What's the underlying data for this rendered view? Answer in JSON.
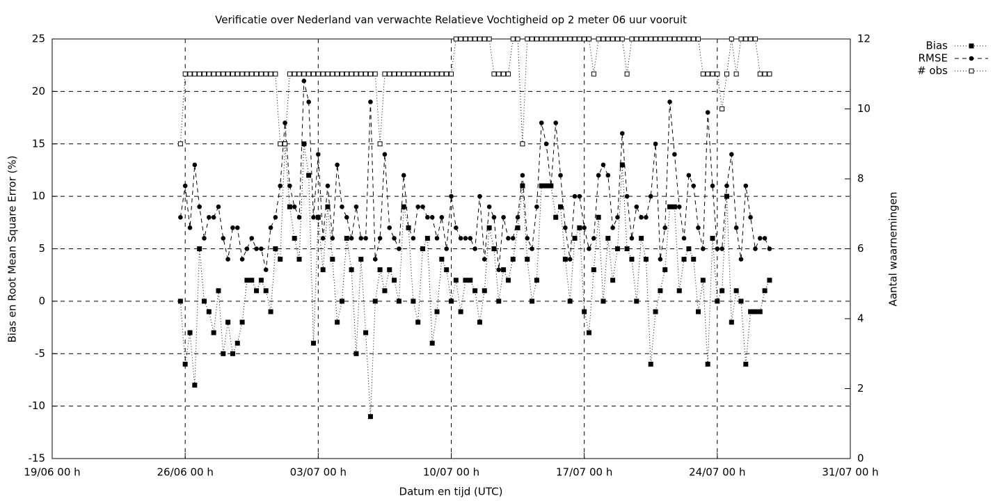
{
  "chart_data": {
    "type": "line",
    "title": "Verificatie over Nederland van verwachte Relatieve Vochtigheid op 2 meter 06 uur vooruit",
    "xlabel": "Datum en tijd (UTC)",
    "ylabel": "Bias en Root Mean Square Error (%)",
    "y2label": "Aantal waarnemingen",
    "xlim": [
      0,
      42
    ],
    "xticks": [
      {
        "value": 0,
        "label": "19/06 00 h"
      },
      {
        "value": 7,
        "label": "26/06 00 h"
      },
      {
        "value": 14,
        "label": "03/07 00 h"
      },
      {
        "value": 21,
        "label": "10/07 00 h"
      },
      {
        "value": 28,
        "label": "17/07 00 h"
      },
      {
        "value": 35,
        "label": "24/07 00 h"
      },
      {
        "value": 42,
        "label": "31/07 00 h"
      }
    ],
    "ylim": [
      -15,
      25
    ],
    "yticks": [
      -15,
      -10,
      -5,
      0,
      5,
      10,
      15,
      20,
      25
    ],
    "y2lim": [
      0,
      12
    ],
    "y2ticks": [
      0,
      2,
      4,
      6,
      8,
      10,
      12
    ],
    "grid": true,
    "legend": "top-right",
    "x": [
      6.75,
      7,
      7.25,
      7.5,
      7.75,
      8,
      8.25,
      8.5,
      8.75,
      9,
      9.25,
      9.5,
      9.75,
      10,
      10.25,
      10.5,
      10.75,
      11,
      11.25,
      11.5,
      11.75,
      12,
      12.25,
      12.5,
      12.75,
      13,
      13.25,
      13.5,
      13.75,
      14,
      14.25,
      14.5,
      14.75,
      15,
      15.25,
      15.5,
      15.75,
      16,
      16.25,
      16.5,
      16.75,
      17,
      17.25,
      17.5,
      17.75,
      18,
      18.25,
      18.5,
      18.75,
      19,
      19.25,
      19.5,
      19.75,
      20,
      20.25,
      20.5,
      20.75,
      21,
      21.25,
      21.5,
      21.75,
      22,
      22.25,
      22.5,
      22.75,
      23,
      23.25,
      23.5,
      23.75,
      24,
      24.25,
      24.5,
      24.75,
      25,
      25.25,
      25.5,
      25.75,
      26,
      26.25,
      26.5,
      26.75,
      27,
      27.25,
      27.5,
      27.75,
      28,
      28.25,
      28.5,
      28.75,
      29,
      29.25,
      29.5,
      29.75,
      30,
      30.25,
      30.5,
      30.75,
      31,
      31.25,
      31.5,
      31.75,
      32,
      32.25,
      32.5,
      32.75,
      33,
      33.25,
      33.5,
      33.75,
      34,
      34.25,
      34.5,
      34.75,
      35,
      35.25,
      35.5,
      35.75,
      36,
      36.25,
      36.5,
      36.75,
      37,
      37.25,
      37.5,
      37.75
    ],
    "series": [
      {
        "name": "Bias",
        "color": "#000000",
        "marker": "square",
        "dash": "dotted",
        "values": [
          0,
          -6,
          -3,
          -8,
          5,
          0,
          -1,
          -3,
          1,
          -5,
          -2,
          -5,
          -4,
          -2,
          2,
          2,
          1,
          2,
          1,
          -1,
          5,
          4,
          15,
          9,
          6,
          4,
          15,
          12,
          -4,
          8,
          3,
          9,
          4,
          -2,
          0,
          6,
          3,
          -5,
          4,
          -3,
          -11,
          0,
          3,
          1,
          3,
          2,
          0,
          9,
          7,
          0,
          -2,
          5,
          6,
          -4,
          -1,
          4,
          3,
          0,
          2,
          -1,
          2,
          2,
          1,
          -2,
          1,
          7,
          5,
          0,
          3,
          2,
          4,
          7,
          11,
          4,
          0,
          2,
          11,
          11,
          11,
          8,
          9,
          4,
          0,
          6,
          7,
          -1,
          -3,
          3,
          8,
          0,
          6,
          2,
          5,
          13,
          5,
          4,
          0,
          6,
          4,
          -6,
          -1,
          1,
          3,
          9,
          9,
          1,
          4,
          5,
          4,
          -1,
          2,
          -6,
          6,
          0,
          1,
          10,
          -2,
          1,
          0,
          -6,
          -1,
          -1,
          -1,
          1,
          2
        ]
      },
      {
        "name": "RMSE",
        "color": "#000000",
        "marker": "circle",
        "dash": "dashed",
        "values": [
          8,
          11,
          7,
          13,
          9,
          6,
          8,
          8,
          9,
          6,
          4,
          7,
          7,
          4,
          5,
          6,
          5,
          5,
          3,
          7,
          8,
          11,
          17,
          11,
          9,
          8,
          21,
          19,
          8,
          14,
          6,
          11,
          6,
          13,
          9,
          8,
          6,
          9,
          6,
          6,
          19,
          4,
          6,
          14,
          7,
          6,
          5,
          12,
          7,
          6,
          9,
          9,
          8,
          8,
          6,
          8,
          5,
          10,
          7,
          6,
          6,
          6,
          5,
          10,
          4,
          9,
          8,
          3,
          8,
          6,
          6,
          8,
          12,
          6,
          5,
          9,
          17,
          15,
          11,
          17,
          12,
          7,
          4,
          10,
          10,
          7,
          5,
          6,
          12,
          13,
          12,
          7,
          8,
          16,
          10,
          6,
          9,
          8,
          8,
          10,
          15,
          4,
          7,
          19,
          14,
          9,
          6,
          12,
          11,
          7,
          5,
          18,
          11,
          5,
          5,
          11,
          14,
          7,
          4,
          11,
          8,
          5,
          6,
          6,
          5
        ]
      },
      {
        "name": "# obs",
        "color": "#000000",
        "marker": "open-square",
        "dash": "dotted",
        "axis": "y2",
        "values": [
          9,
          11,
          11,
          11,
          11,
          11,
          11,
          11,
          11,
          11,
          11,
          11,
          11,
          11,
          11,
          11,
          11,
          11,
          11,
          11,
          11,
          9,
          9,
          11,
          11,
          11,
          11,
          11,
          11,
          11,
          11,
          11,
          11,
          11,
          11,
          11,
          11,
          11,
          11,
          11,
          11,
          11,
          9,
          11,
          11,
          11,
          11,
          11,
          11,
          11,
          11,
          11,
          11,
          11,
          11,
          11,
          11,
          11,
          12,
          12,
          12,
          12,
          12,
          12,
          12,
          12,
          11,
          11,
          11,
          11,
          12,
          12,
          9,
          12,
          12,
          12,
          12,
          12,
          12,
          12,
          12,
          12,
          12,
          12,
          12,
          12,
          12,
          11,
          12,
          12,
          12,
          12,
          12,
          12,
          11,
          12,
          12,
          12,
          12,
          12,
          12,
          12,
          12,
          12,
          12,
          12,
          12,
          12,
          12,
          12,
          11,
          11,
          11,
          11,
          10,
          11,
          12,
          11,
          12,
          12,
          12,
          12,
          11,
          11,
          11
        ]
      }
    ]
  }
}
